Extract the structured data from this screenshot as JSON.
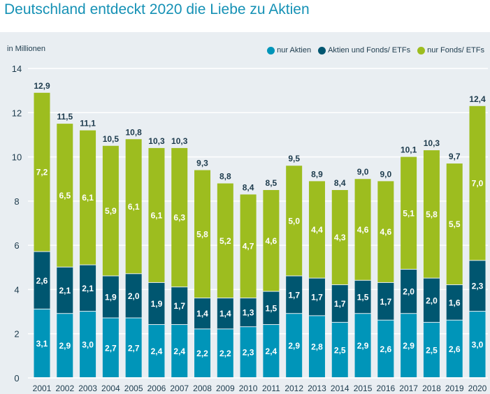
{
  "title": "Deutschland entdeckt 2020 die Liebe zu Aktien",
  "chart_data": {
    "type": "bar",
    "stacked": true,
    "title": "Deutschland entdeckt 2020 die Liebe zu Aktien",
    "ylabel": "in Millionen",
    "xlabel": "",
    "ylim": [
      0,
      14
    ],
    "yticks": [
      0,
      2,
      4,
      6,
      8,
      10,
      12,
      14
    ],
    "grid": true,
    "legend_position": "top-right",
    "categories": [
      "2001",
      "2002",
      "2003",
      "2004",
      "2005",
      "2006",
      "2007",
      "2008",
      "2009",
      "2010",
      "2011",
      "2012",
      "2013",
      "2014",
      "2015",
      "2016",
      "2017",
      "2018",
      "2019",
      "2020"
    ],
    "series": [
      {
        "name": "nur Aktien",
        "color": "#0095b9",
        "values": [
          3.1,
          2.9,
          3.0,
          2.7,
          2.7,
          2.4,
          2.4,
          2.2,
          2.2,
          2.3,
          2.4,
          2.9,
          2.8,
          2.5,
          2.9,
          2.6,
          2.9,
          2.5,
          2.6,
          3.0
        ]
      },
      {
        "name": "Aktien und Fonds/ ETFs",
        "color": "#005670",
        "values": [
          2.6,
          2.1,
          2.1,
          1.9,
          2.0,
          1.9,
          1.7,
          1.4,
          1.4,
          1.3,
          1.5,
          1.7,
          1.7,
          1.7,
          1.5,
          1.7,
          2.0,
          2.0,
          1.6,
          2.3
        ]
      },
      {
        "name": "nur Fonds/ ETFs",
        "color": "#9dbd1f",
        "values": [
          7.2,
          6.5,
          6.1,
          5.9,
          6.1,
          6.1,
          6.3,
          5.8,
          5.2,
          4.7,
          4.6,
          5.0,
          4.4,
          4.3,
          4.6,
          4.6,
          5.1,
          5.8,
          5.5,
          7.0
        ]
      }
    ],
    "totals": [
      12.9,
      11.5,
      11.1,
      10.5,
      10.8,
      10.3,
      10.3,
      9.3,
      8.8,
      8.4,
      8.5,
      9.5,
      8.9,
      8.4,
      9.0,
      9.0,
      10.1,
      10.3,
      9.7,
      12.4
    ]
  }
}
